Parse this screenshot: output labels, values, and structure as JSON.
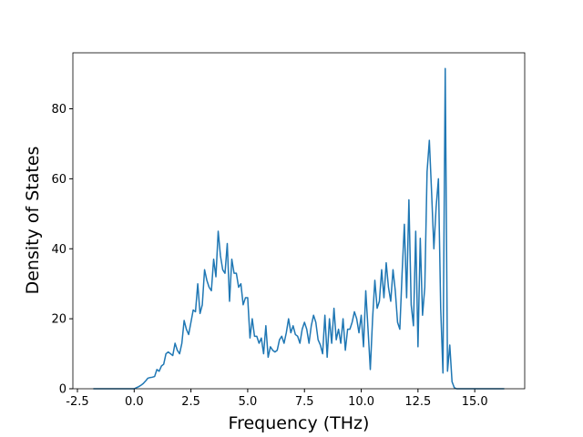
{
  "chart_data": {
    "type": "line",
    "xlabel": "Frequency (THz)",
    "ylabel": "Density of States",
    "x": [
      -1.8,
      -1,
      -0.5,
      0,
      0.1,
      0.2,
      0.3,
      0.4,
      0.5,
      0.6,
      0.7,
      0.8,
      0.9,
      1,
      1.1,
      1.2,
      1.3,
      1.4,
      1.5,
      1.6,
      1.7,
      1.8,
      1.9,
      2,
      2.1,
      2.2,
      2.3,
      2.4,
      2.5,
      2.6,
      2.7,
      2.8,
      2.9,
      3,
      3.1,
      3.2,
      3.3,
      3.4,
      3.5,
      3.6,
      3.7,
      3.8,
      3.9,
      4,
      4.1,
      4.2,
      4.3,
      4.4,
      4.5,
      4.6,
      4.7,
      4.8,
      4.9,
      5,
      5.1,
      5.2,
      5.3,
      5.4,
      5.5,
      5.6,
      5.7,
      5.8,
      5.9,
      6,
      6.1,
      6.2,
      6.3,
      6.4,
      6.5,
      6.6,
      6.7,
      6.8,
      6.9,
      7,
      7.1,
      7.2,
      7.3,
      7.4,
      7.5,
      7.6,
      7.7,
      7.8,
      7.9,
      8,
      8.1,
      8.2,
      8.3,
      8.4,
      8.5,
      8.6,
      8.7,
      8.8,
      8.9,
      9,
      9.1,
      9.2,
      9.3,
      9.4,
      9.5,
      9.6,
      9.7,
      9.8,
      9.9,
      10,
      10.1,
      10.2,
      10.3,
      10.4,
      10.5,
      10.6,
      10.7,
      10.8,
      10.9,
      11,
      11.1,
      11.2,
      11.3,
      11.4,
      11.5,
      11.6,
      11.7,
      11.8,
      11.9,
      12,
      12.1,
      12.2,
      12.3,
      12.4,
      12.5,
      12.6,
      12.7,
      12.8,
      12.9,
      13,
      13.1,
      13.2,
      13.3,
      13.4,
      13.5,
      13.6,
      13.7,
      13.8,
      13.9,
      14,
      14.1,
      14.2,
      14.5,
      15.5,
      16.3
    ],
    "series": [
      {
        "color": "#1f77b4",
        "values": [
          0,
          0,
          0,
          0,
          0.3,
          0.6,
          1,
          1.5,
          2.2,
          3,
          3.2,
          3.3,
          3.5,
          5.5,
          5,
          6.5,
          7,
          10,
          10.5,
          10,
          9.5,
          13,
          11,
          10,
          13,
          19.5,
          17,
          15.5,
          19,
          22.5,
          22,
          30,
          21.5,
          24,
          34,
          31,
          29,
          28,
          37,
          32,
          45,
          38,
          34,
          33,
          41.5,
          25,
          37,
          33,
          33,
          29,
          30,
          24,
          26,
          26,
          14.5,
          20,
          15,
          15,
          13,
          14.5,
          10,
          18,
          9,
          12,
          11,
          10.5,
          11,
          14,
          15,
          13,
          16,
          20,
          16,
          18,
          15.5,
          15,
          13,
          17,
          19,
          17,
          13,
          18,
          21,
          19,
          14,
          12.5,
          10,
          21,
          9,
          20,
          13,
          23,
          14,
          17,
          13,
          20,
          11,
          17,
          17,
          19,
          22,
          20,
          16,
          21,
          12,
          28,
          17,
          5.5,
          20,
          31,
          23,
          25,
          34,
          26,
          36,
          29,
          25,
          34,
          28,
          19,
          17,
          33,
          47,
          26,
          54,
          24,
          18,
          45,
          12,
          43,
          21,
          29,
          62,
          71,
          56,
          40,
          52,
          60,
          23,
          4.5,
          91.5,
          5,
          12.5,
          2,
          0.3,
          0,
          0,
          0,
          0
        ]
      }
    ],
    "xlim": [
      -2.7,
      17.2
    ],
    "ylim": [
      0,
      96
    ],
    "xticks": [
      -2.5,
      {
        "value": 0,
        "label": "0.0"
      },
      2.5,
      {
        "value": 5,
        "label": "5.0"
      },
      7.5,
      {
        "value": 10,
        "label": "10.0"
      },
      12.5,
      {
        "value": 15,
        "label": "15.0"
      }
    ],
    "yticks": [
      0,
      20,
      40,
      60,
      80
    ]
  }
}
